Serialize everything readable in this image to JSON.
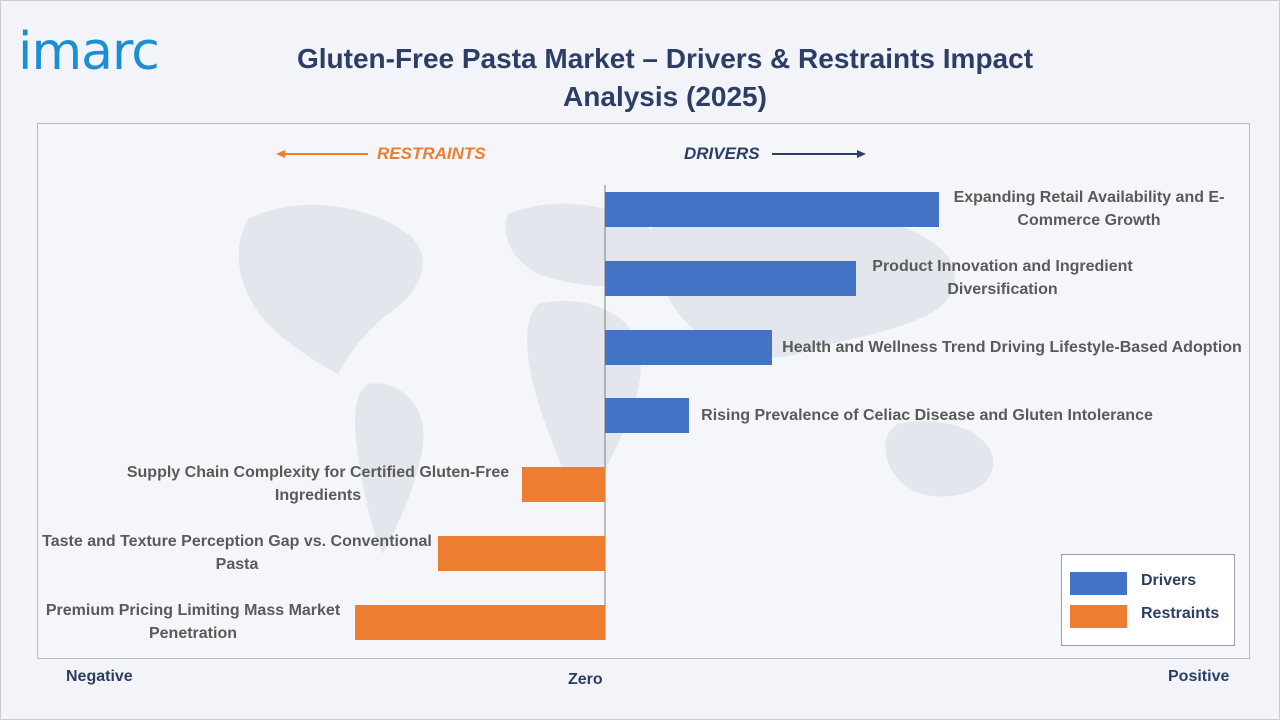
{
  "logo": {
    "text": "imarc"
  },
  "title": "Gluten-Free Pasta Market – Drivers & Restraints Impact Analysis (2025)",
  "direction_labels": {
    "restraints": "RESTRAINTS",
    "drivers": "DRIVERS"
  },
  "axis_labels": {
    "negative": "Negative",
    "zero": "Zero",
    "positive": "Positive"
  },
  "colors": {
    "drivers": "#4472c4",
    "restraints": "#ed7d31",
    "title": "#2c3e66",
    "logo": "#1a8fd6"
  },
  "chart_data": {
    "type": "bar",
    "orientation": "horizontal",
    "title": "Gluten-Free Pasta Market – Drivers & Restraints Impact Analysis (2025)",
    "categories": [
      "Expanding Retail Availability and E-Commerce Growth",
      "Product Innovation and Ingredient Diversification",
      "Health and Wellness Trend Driving Lifestyle-Based Adoption",
      "Rising Prevalence of Celiac Disease and Gluten Intolerance",
      "Supply Chain Complexity for Certified Gluten-Free Ingredients",
      "Taste and Texture Perception Gap vs. Conventional Pasta",
      "Premium Pricing Limiting Mass Market Penetration"
    ],
    "series": [
      {
        "name": "Drivers",
        "values": [
          4,
          3,
          2,
          1,
          null,
          null,
          null
        ]
      },
      {
        "name": "Restraints",
        "values": [
          null,
          null,
          null,
          null,
          -1,
          -2,
          -3
        ]
      }
    ],
    "xlim": [
      -6.8,
      7.6
    ],
    "legend": {
      "position": "bottom-right",
      "entries": [
        "Drivers",
        "Restraints"
      ]
    },
    "grid": false
  }
}
